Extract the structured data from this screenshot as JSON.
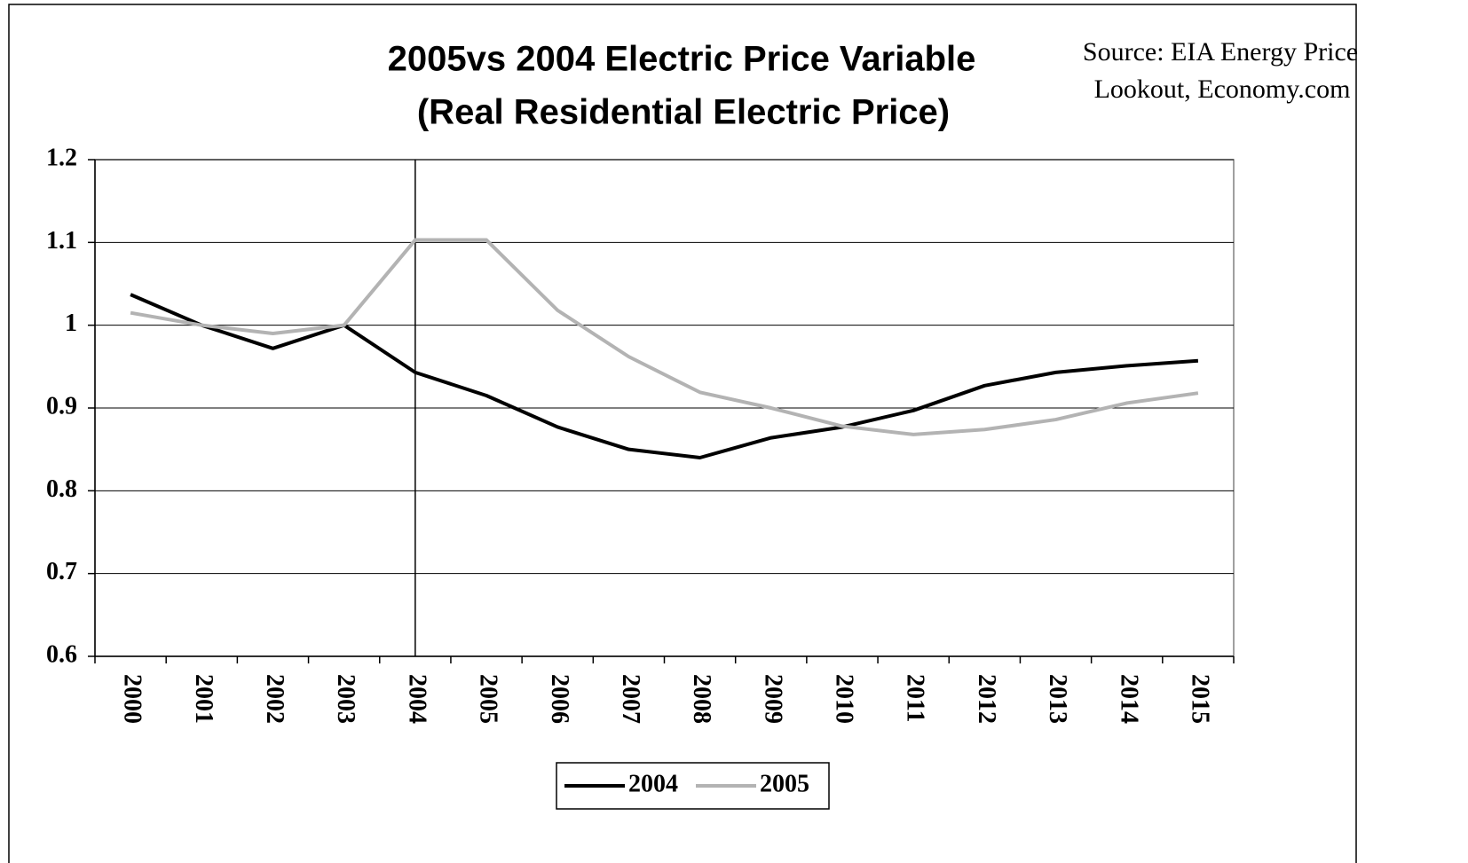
{
  "chart_data": {
    "type": "line",
    "title": [
      "2005vs 2004 Electric Price Variable",
      "(Real Residential Electric Price)"
    ],
    "annotation": [
      "Source: EIA Energy Price",
      "Lookout, Economy.com"
    ],
    "categories": [
      "2000",
      "2001",
      "2002",
      "2003",
      "2004",
      "2005",
      "2006",
      "2007",
      "2008",
      "2009",
      "2010",
      "2011",
      "2012",
      "2013",
      "2014",
      "2015"
    ],
    "series": [
      {
        "name": "2004",
        "color": "#000000",
        "values": [
          1.037,
          1.0,
          0.972,
          1.0,
          0.943,
          0.915,
          0.877,
          0.85,
          0.84,
          0.864,
          0.877,
          0.897,
          0.927,
          0.943,
          0.951,
          0.957
        ]
      },
      {
        "name": "2005",
        "color": "#b3b3b3",
        "values": [
          1.015,
          1.0,
          0.99,
          1.0,
          1.103,
          1.103,
          1.018,
          0.962,
          0.919,
          0.9,
          0.878,
          0.868,
          0.874,
          0.886,
          0.906,
          0.918
        ]
      }
    ],
    "ylim": [
      0.6,
      1.2
    ],
    "yticks": [
      0.6,
      0.7,
      0.8,
      0.9,
      1,
      1.1,
      1.2
    ],
    "grid": true,
    "vertical_line": "2004",
    "legend": "bottom"
  }
}
